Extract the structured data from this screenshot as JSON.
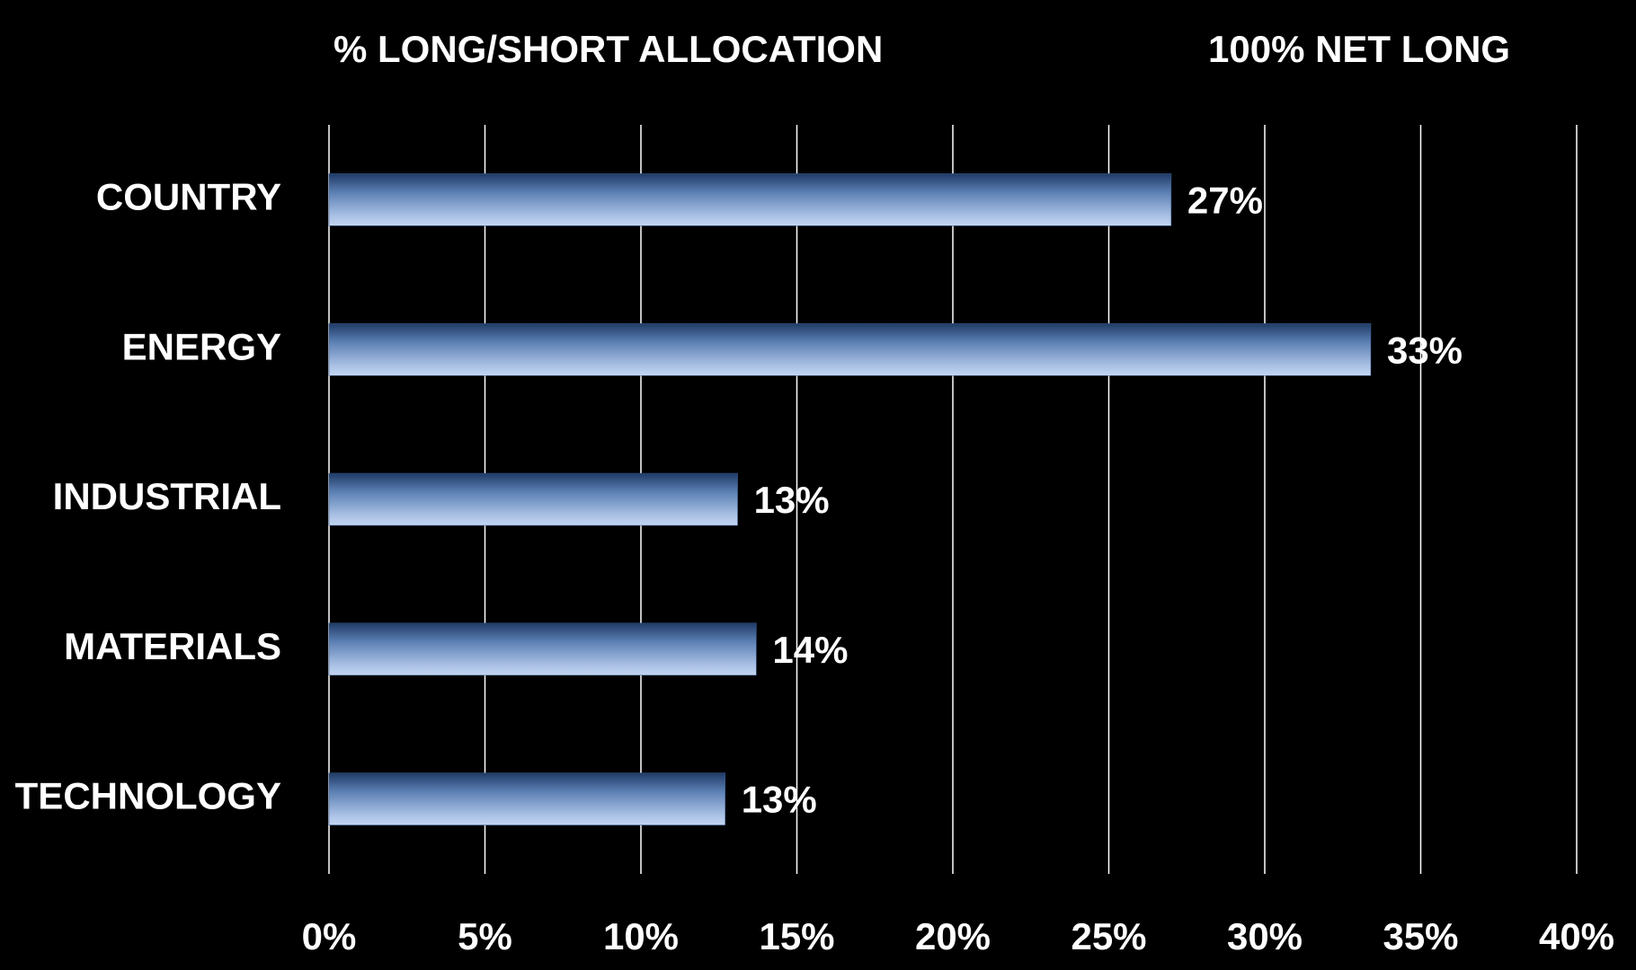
{
  "chart_data": {
    "type": "hbar",
    "title": "% LONG/SHORT ALLOCATION",
    "subtitle": "100% NET LONG",
    "categories": [
      "COUNTRY",
      "ENERGY",
      "INDUSTRIAL",
      "MATERIALS",
      "TECHNOLOGY"
    ],
    "values": [
      27,
      33.4,
      13.1,
      13.7,
      12.7
    ],
    "value_labels": [
      "27%",
      "33%",
      "13%",
      "14%",
      "13%"
    ],
    "color": "#3d5f94",
    "xlim": [
      0,
      40
    ],
    "xticks": [
      {
        "value": 0,
        "label": "0%"
      },
      {
        "value": 5,
        "label": "5%"
      },
      {
        "value": 10,
        "label": "10%"
      },
      {
        "value": 15,
        "label": "15%"
      },
      {
        "value": 20,
        "label": "20%"
      },
      {
        "value": 25,
        "label": "25%"
      },
      {
        "value": 30,
        "label": "30%"
      },
      {
        "value": 35,
        "label": "35%"
      },
      {
        "value": 40,
        "label": "40%"
      }
    ],
    "grid": true
  }
}
